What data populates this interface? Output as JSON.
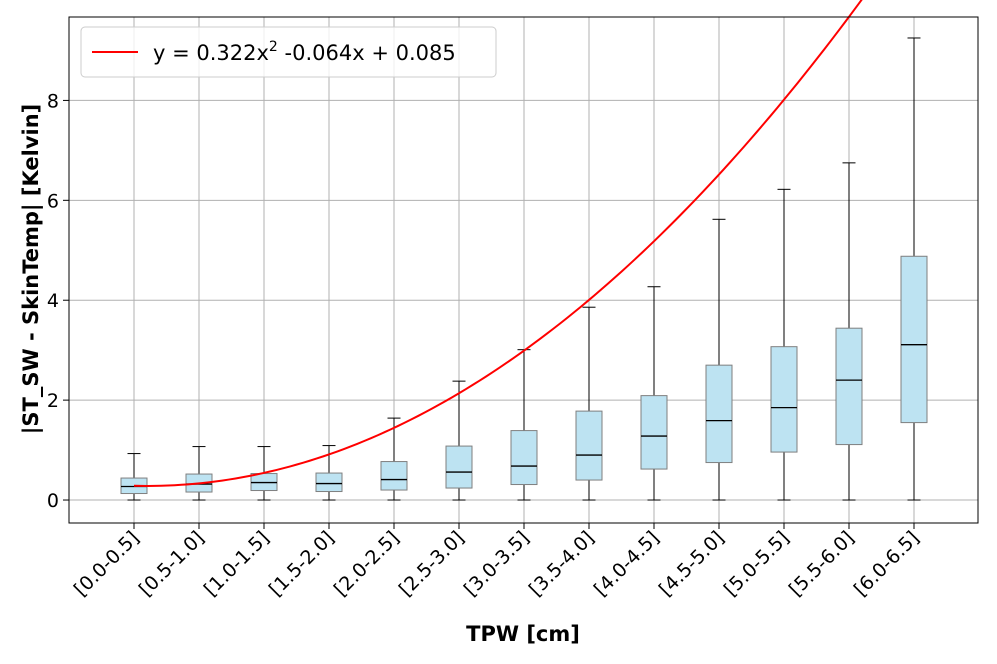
{
  "chart_data": {
    "type": "box",
    "xlabel": "TPW [cm]",
    "ylabel": "|ST_SW - SkinTemp| [Kelvin]",
    "categories": [
      "[0.0-0.5]",
      "[0.5-1.0]",
      "[1.0-1.5]",
      "[1.5-2.0]",
      "[2.0-2.5]",
      "[2.5-3.0]",
      "[3.0-3.5]",
      "[3.5-4.0]",
      "[4.0-4.5]",
      "[4.5-5.0]",
      "[5.0-5.5]",
      "[5.5-6.0]",
      "[6.0-6.5]"
    ],
    "boxes": [
      {
        "whislo": 0.0,
        "q1": 0.13,
        "med": 0.27,
        "q3": 0.44,
        "whishi": 0.93
      },
      {
        "whislo": 0.0,
        "q1": 0.16,
        "med": 0.32,
        "q3": 0.52,
        "whishi": 1.07
      },
      {
        "whislo": 0.0,
        "q1": 0.19,
        "med": 0.35,
        "q3": 0.53,
        "whishi": 1.07
      },
      {
        "whislo": 0.0,
        "q1": 0.17,
        "med": 0.33,
        "q3": 0.54,
        "whishi": 1.09
      },
      {
        "whislo": 0.0,
        "q1": 0.2,
        "med": 0.41,
        "q3": 0.77,
        "whishi": 1.64
      },
      {
        "whislo": 0.0,
        "q1": 0.24,
        "med": 0.56,
        "q3": 1.08,
        "whishi": 2.38
      },
      {
        "whislo": 0.0,
        "q1": 0.31,
        "med": 0.68,
        "q3": 1.39,
        "whishi": 3.01
      },
      {
        "whislo": 0.0,
        "q1": 0.4,
        "med": 0.9,
        "q3": 1.78,
        "whishi": 3.86
      },
      {
        "whislo": 0.0,
        "q1": 0.62,
        "med": 1.28,
        "q3": 2.09,
        "whishi": 4.27
      },
      {
        "whislo": 0.0,
        "q1": 0.75,
        "med": 1.59,
        "q3": 2.7,
        "whishi": 5.62
      },
      {
        "whislo": 0.0,
        "q1": 0.96,
        "med": 1.85,
        "q3": 3.07,
        "whishi": 6.22
      },
      {
        "whislo": 0.0,
        "q1": 1.11,
        "med": 2.4,
        "q3": 3.44,
        "whishi": 6.75
      },
      {
        "whislo": 0.0,
        "q1": 1.55,
        "med": 3.11,
        "q3": 4.88,
        "whishi": 9.25
      }
    ],
    "fit": {
      "a": 0.322,
      "b": -0.064,
      "c": 0.085,
      "x_start": 0.0,
      "x_end": 12.5
    },
    "legend": {
      "label_prefix": "y = 0.322x",
      "label_sup": "2",
      "label_suffix": " -0.064x + 0.085",
      "location": "top-left"
    },
    "yticks": [
      0,
      2,
      4,
      6,
      8
    ],
    "ylim": [
      -0.46,
      9.67
    ],
    "grid": true,
    "colors": {
      "box_fill": "#bde3f2",
      "box_edge": "#7f7f7f",
      "median": "#000000",
      "whisker": "#000000",
      "fit_line": "#ff0000",
      "grid": "#b0b0b0"
    }
  }
}
